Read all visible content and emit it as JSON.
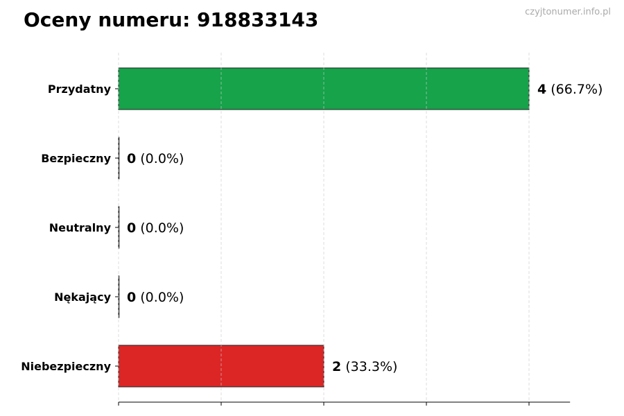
{
  "title": "Oceny numeru: 918833143",
  "watermark": "czyjtonumer.info.pl",
  "chart_data": {
    "type": "bar",
    "orientation": "horizontal",
    "title": "Oceny numeru: 918833143",
    "categories": [
      "Przydatny",
      "Bezpieczny",
      "Neutralny",
      "Nękający",
      "Niebezpieczny"
    ],
    "values": [
      4,
      0,
      0,
      0,
      2
    ],
    "percent_labels": [
      "(66.7%)",
      "(0.0%)",
      "(0.0%)",
      "(0.0%)",
      "(33.3%)"
    ],
    "colors": [
      "#16a34a",
      "#16a34a",
      "#9ca3af",
      "#dc2626",
      "#dc2626"
    ],
    "xlim": [
      0,
      4.4
    ],
    "x_ticks": [
      0,
      1,
      2,
      3,
      4
    ],
    "x_tick_labels_shown": false,
    "grid": "vertical dashed",
    "xlabel": "",
    "ylabel": ""
  }
}
